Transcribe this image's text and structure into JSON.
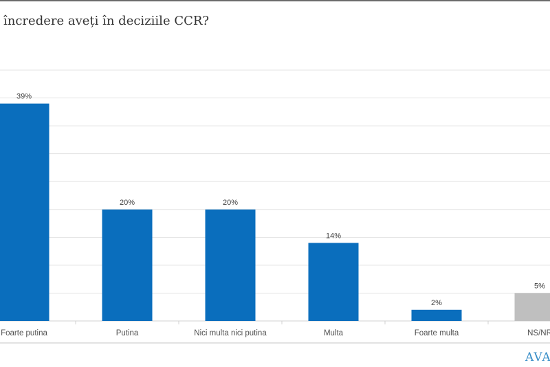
{
  "title": "încredere aveți în deciziile CCR?",
  "logo_text": "AVAN",
  "chart_data": {
    "type": "bar",
    "title": "încredere aveți în deciziile CCR?",
    "categories": [
      "Foarte putina",
      "Putina",
      "Nici multa nici putina",
      "Multa",
      "Foarte multa",
      "NS/NR"
    ],
    "values": [
      39,
      20,
      20,
      14,
      2,
      5
    ],
    "data_labels": [
      "39%",
      "20%",
      "20%",
      "14%",
      "2%",
      "5%"
    ],
    "colors": [
      "#0a6ebd",
      "#0a6ebd",
      "#0a6ebd",
      "#0a6ebd",
      "#0a6ebd",
      "#bfbfbf"
    ],
    "ylim": [
      0,
      45
    ],
    "grid": true,
    "legend": "none",
    "xlabel": "",
    "ylabel": ""
  }
}
